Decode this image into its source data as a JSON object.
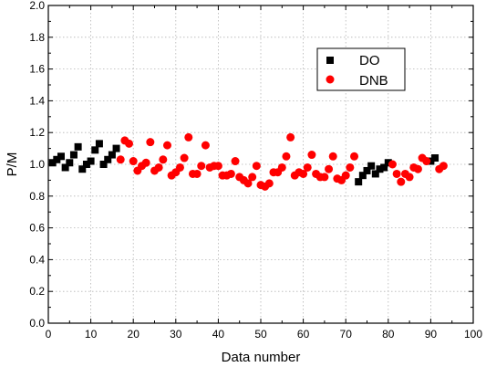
{
  "chart_data": {
    "type": "scatter",
    "title": "",
    "xlabel": "Data number",
    "ylabel": "P/M",
    "xlim": [
      0,
      100
    ],
    "ylim": [
      0.0,
      2.0
    ],
    "x_ticks": [
      "0",
      "10",
      "20",
      "30",
      "40",
      "50",
      "60",
      "70",
      "80",
      "90",
      "100"
    ],
    "y_ticks": [
      "0.0",
      "0.2",
      "0.4",
      "0.6",
      "0.8",
      "1.0",
      "1.2",
      "1.4",
      "1.6",
      "1.8",
      "2.0"
    ],
    "grid": true,
    "legend_position": "top-right",
    "series": [
      {
        "name": "DO",
        "marker": "square",
        "color": "#000000",
        "points": [
          [
            1,
            1.01
          ],
          [
            2,
            1.03
          ],
          [
            3,
            1.05
          ],
          [
            4,
            0.98
          ],
          [
            5,
            1.01
          ],
          [
            6,
            1.06
          ],
          [
            7,
            1.11
          ],
          [
            8,
            0.97
          ],
          [
            9,
            1.0
          ],
          [
            10,
            1.02
          ],
          [
            11,
            1.09
          ],
          [
            12,
            1.13
          ],
          [
            13,
            1.0
          ],
          [
            14,
            1.03
          ],
          [
            15,
            1.06
          ],
          [
            16,
            1.1
          ],
          [
            73,
            0.89
          ],
          [
            74,
            0.93
          ],
          [
            75,
            0.96
          ],
          [
            76,
            0.99
          ],
          [
            77,
            0.94
          ],
          [
            78,
            0.97
          ],
          [
            79,
            0.98
          ],
          [
            80,
            1.01
          ],
          [
            90,
            1.02
          ],
          [
            91,
            1.04
          ]
        ]
      },
      {
        "name": "DNB",
        "marker": "circle",
        "color": "#ff0000",
        "points": [
          [
            17,
            1.03
          ],
          [
            18,
            1.15
          ],
          [
            19,
            1.13
          ],
          [
            20,
            1.02
          ],
          [
            21,
            0.96
          ],
          [
            22,
            0.99
          ],
          [
            23,
            1.01
          ],
          [
            24,
            1.14
          ],
          [
            25,
            0.96
          ],
          [
            26,
            0.98
          ],
          [
            27,
            1.03
          ],
          [
            28,
            1.12
          ],
          [
            29,
            0.93
          ],
          [
            30,
            0.95
          ],
          [
            31,
            0.98
          ],
          [
            32,
            1.04
          ],
          [
            33,
            1.17
          ],
          [
            34,
            0.94
          ],
          [
            35,
            0.94
          ],
          [
            36,
            0.99
          ],
          [
            37,
            1.12
          ],
          [
            38,
            0.98
          ],
          [
            39,
            0.99
          ],
          [
            40,
            0.99
          ],
          [
            41,
            0.93
          ],
          [
            42,
            0.93
          ],
          [
            43,
            0.94
          ],
          [
            44,
            1.02
          ],
          [
            45,
            0.92
          ],
          [
            46,
            0.9
          ],
          [
            47,
            0.88
          ],
          [
            48,
            0.92
          ],
          [
            49,
            0.99
          ],
          [
            50,
            0.87
          ],
          [
            51,
            0.86
          ],
          [
            52,
            0.88
          ],
          [
            53,
            0.95
          ],
          [
            54,
            0.95
          ],
          [
            55,
            0.98
          ],
          [
            56,
            1.05
          ],
          [
            57,
            1.17
          ],
          [
            58,
            0.93
          ],
          [
            59,
            0.95
          ],
          [
            60,
            0.94
          ],
          [
            61,
            0.98
          ],
          [
            62,
            1.06
          ],
          [
            63,
            0.94
          ],
          [
            64,
            0.92
          ],
          [
            65,
            0.92
          ],
          [
            66,
            0.97
          ],
          [
            67,
            1.05
          ],
          [
            68,
            0.91
          ],
          [
            69,
            0.9
          ],
          [
            70,
            0.93
          ],
          [
            71,
            0.98
          ],
          [
            72,
            1.05
          ],
          [
            81,
            1.0
          ],
          [
            82,
            0.94
          ],
          [
            83,
            0.89
          ],
          [
            84,
            0.94
          ],
          [
            85,
            0.92
          ],
          [
            86,
            0.98
          ],
          [
            87,
            0.97
          ],
          [
            88,
            1.04
          ],
          [
            89,
            1.02
          ],
          [
            92,
            0.97
          ],
          [
            93,
            0.99
          ]
        ]
      }
    ]
  }
}
